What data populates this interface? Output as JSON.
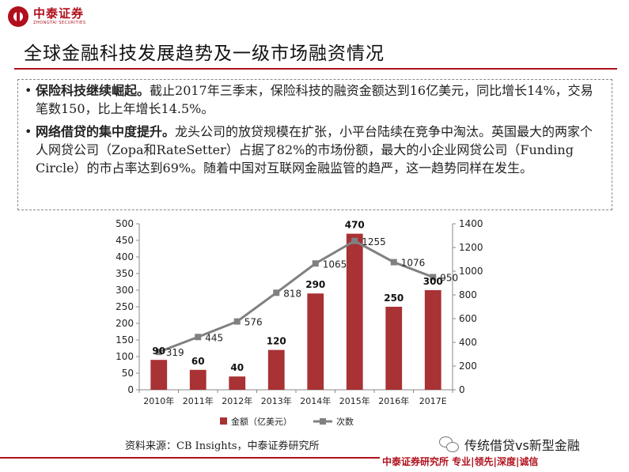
{
  "brand": {
    "name_cn": "中泰证券",
    "name_en": "ZHONGTAI SECURITIES",
    "color": "#b0101c"
  },
  "title": "全球金融科技发展趋势及一级市场融资情况",
  "bullets": [
    {
      "bold": "保险科技继续崛起。",
      "text": "截止2017年三季末，保险科技的融资金额达到16亿美元，同比增长14%，交易笔数150，比上年增长14.5%。"
    },
    {
      "bold": "网络借贷的集中度提升。",
      "text": "龙头公司的放贷规模在扩张，小平台陆续在竞争中淘汰。英国最大的两家个人网贷公司（Zopa和RateSetter）占据了82%的市场份额，最大的小企业网贷公司（Funding Circle）的市占率达到69%。随着中国对互联网金融监管的趋严，这一趋势同样在发生。"
    }
  ],
  "chart_data": {
    "type": "bar",
    "categories": [
      "2010年",
      "2011年",
      "2012年",
      "2013年",
      "2014年",
      "2015年",
      "2016年",
      "2017E"
    ],
    "series": [
      {
        "name": "金额（亿美元）",
        "kind": "bar",
        "axis": "left",
        "color": "#a83234",
        "values": [
          90,
          60,
          40,
          120,
          290,
          470,
          250,
          300
        ]
      },
      {
        "name": "次数",
        "kind": "line",
        "axis": "right",
        "color": "#808080",
        "values": [
          319,
          445,
          576,
          818,
          1065,
          1255,
          1076,
          950
        ]
      }
    ],
    "ylim_left": [
      0,
      500
    ],
    "yticks_left": [
      "500",
      "450",
      "400",
      "350",
      "300",
      "250",
      "200",
      "150",
      "100",
      "50",
      "0"
    ],
    "ylim_right": [
      0,
      1400
    ],
    "yticks_right": [
      "1400",
      "1200",
      "1000",
      "800",
      "600",
      "400",
      "200",
      "0"
    ],
    "legend_position": "bottom",
    "grid": false
  },
  "source": "资料来源：CB Insights，中泰证券研究所",
  "wechat": {
    "account": "传统借贷vs新型金融"
  },
  "footer": "中泰证券研究所  专业|领先|深度|诚信"
}
